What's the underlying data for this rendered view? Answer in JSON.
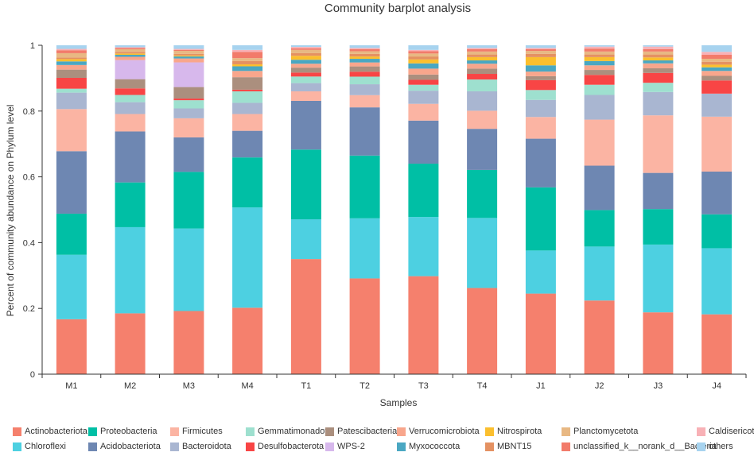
{
  "chart_data": {
    "type": "bar",
    "stacked": true,
    "title": "Community barplot analysis",
    "xlabel": "Samples",
    "ylabel": "Percent of community abundance on Phylum level",
    "ylim": [
      0,
      1
    ],
    "yticks": [
      0,
      0.2,
      0.4,
      0.6,
      0.8,
      1
    ],
    "ytick_labels": [
      "0",
      "0.2",
      "0.4",
      "0.6",
      "0.8",
      "1"
    ],
    "categories": [
      "M1",
      "M2",
      "M3",
      "M4",
      "T1",
      "T2",
      "T3",
      "T4",
      "J1",
      "J2",
      "J3",
      "J4"
    ],
    "legend_position": "bottom",
    "series": [
      {
        "name": "Actinobacteriota",
        "color": "#f5806d",
        "values": [
          0.167,
          0.185,
          0.192,
          0.202,
          0.35,
          0.29,
          0.298,
          0.262,
          0.245,
          0.224,
          0.188,
          0.182
        ]
      },
      {
        "name": "Chloroflexi",
        "color": "#4dd0e1",
        "values": [
          0.196,
          0.262,
          0.251,
          0.305,
          0.121,
          0.182,
          0.18,
          0.213,
          0.131,
          0.164,
          0.206,
          0.201
        ]
      },
      {
        "name": "Proteobacteria",
        "color": "#00bfa5",
        "values": [
          0.125,
          0.136,
          0.172,
          0.152,
          0.212,
          0.19,
          0.162,
          0.146,
          0.192,
          0.111,
          0.108,
          0.103
        ]
      },
      {
        "name": "Acidobacteriota",
        "color": "#6e87b2",
        "values": [
          0.19,
          0.155,
          0.105,
          0.081,
          0.148,
          0.146,
          0.131,
          0.125,
          0.148,
          0.135,
          0.11,
          0.13
        ]
      },
      {
        "name": "Firmicutes",
        "color": "#fbb4a3",
        "values": [
          0.128,
          0.053,
          0.058,
          0.051,
          0.029,
          0.037,
          0.051,
          0.055,
          0.066,
          0.14,
          0.175,
          0.167
        ]
      },
      {
        "name": "Bacteroidota",
        "color": "#a9b6d1",
        "values": [
          0.05,
          0.036,
          0.03,
          0.034,
          0.025,
          0.033,
          0.04,
          0.059,
          0.052,
          0.075,
          0.071,
          0.07
        ]
      },
      {
        "name": "Gemmatimonadota",
        "color": "#9ee0cf",
        "values": [
          0.012,
          0.022,
          0.025,
          0.035,
          0.02,
          0.023,
          0.018,
          0.036,
          0.03,
          0.031,
          0.028,
          0.0
        ]
      },
      {
        "name": "Desulfobacterota",
        "color": "#f84545",
        "values": [
          0.033,
          0.02,
          0.005,
          0.005,
          0.012,
          0.015,
          0.015,
          0.017,
          0.03,
          0.03,
          0.03,
          0.04
        ]
      },
      {
        "name": "Patescibacteria",
        "color": "#ab8f7e",
        "values": [
          0.025,
          0.028,
          0.035,
          0.038,
          0.015,
          0.016,
          0.016,
          0.016,
          0.012,
          0.015,
          0.014,
          0.014
        ]
      },
      {
        "name": "WPS-2",
        "color": "#d7b8ec",
        "values": [
          0.0,
          0.058,
          0.075,
          0.0,
          0.0,
          0.0,
          0.0,
          0.0,
          0.0,
          0.0,
          0.0,
          0.0
        ]
      },
      {
        "name": "Verrucomicrobiota",
        "color": "#f8a68c",
        "values": [
          0.014,
          0.01,
          0.012,
          0.019,
          0.012,
          0.012,
          0.018,
          0.015,
          0.014,
          0.014,
          0.015,
          0.015
        ]
      },
      {
        "name": "Myxococcota",
        "color": "#4aa7c2",
        "values": [
          0.011,
          0.006,
          0.006,
          0.014,
          0.012,
          0.011,
          0.016,
          0.01,
          0.019,
          0.013,
          0.009,
          0.011
        ]
      },
      {
        "name": "Nitrospirota",
        "color": "#fbbf2e",
        "values": [
          0.007,
          0.004,
          0.003,
          0.006,
          0.012,
          0.007,
          0.012,
          0.01,
          0.025,
          0.012,
          0.009,
          0.008
        ]
      },
      {
        "name": "MBNT15",
        "color": "#e49162",
        "values": [
          0.005,
          0.005,
          0.005,
          0.01,
          0.008,
          0.008,
          0.009,
          0.008,
          0.01,
          0.008,
          0.009,
          0.009
        ]
      },
      {
        "name": "Planctomycetota",
        "color": "#e8b883",
        "values": [
          0.013,
          0.008,
          0.009,
          0.009,
          0.01,
          0.008,
          0.009,
          0.009,
          0.009,
          0.009,
          0.009,
          0.009
        ]
      },
      {
        "name": "unclassified_k__norank_d__Bacteria",
        "color": "#f27b6a",
        "values": [
          0.009,
          0.004,
          0.003,
          0.019,
          0.005,
          0.006,
          0.007,
          0.007,
          0.005,
          0.009,
          0.007,
          0.012
        ]
      },
      {
        "name": "Caldisericota",
        "color": "#f8b1b6",
        "values": [
          0.004,
          0.002,
          0.003,
          0.006,
          0.004,
          0.004,
          0.004,
          0.004,
          0.004,
          0.006,
          0.008,
          0.009
        ]
      },
      {
        "name": "others",
        "color": "#a7d3ef",
        "values": [
          0.011,
          0.006,
          0.011,
          0.014,
          0.005,
          0.008,
          0.014,
          0.008,
          0.008,
          0.004,
          0.004,
          0.02
        ]
      }
    ]
  },
  "legend": {
    "rows": [
      [
        "Actinobacteriota",
        "Proteobacteria",
        "Firmicutes",
        "Gemmatimonadot",
        "Patescibacteria",
        "Verrucomicrobiota",
        "Nitrospirota",
        "Planctomycetota",
        "Caldisericota"
      ],
      [
        "Chloroflexi",
        "Acidobacteriota",
        "Bacteroidota",
        "Desulfobacterota",
        "WPS-2",
        "Myxococcota",
        "MBNT15",
        "unclassified_k__norank_d__Bacteria",
        "others"
      ]
    ],
    "colors": [
      [
        "#f5806d",
        "#00bfa5",
        "#fbb4a3",
        "#9ee0cf",
        "#ab8f7e",
        "#f8a68c",
        "#fbbf2e",
        "#e8b883",
        "#f8b1b6"
      ],
      [
        "#4dd0e1",
        "#6e87b2",
        "#a9b6d1",
        "#f84545",
        "#d7b8ec",
        "#4aa7c2",
        "#e49162",
        "#f27b6a",
        "#a7d3ef"
      ]
    ]
  }
}
